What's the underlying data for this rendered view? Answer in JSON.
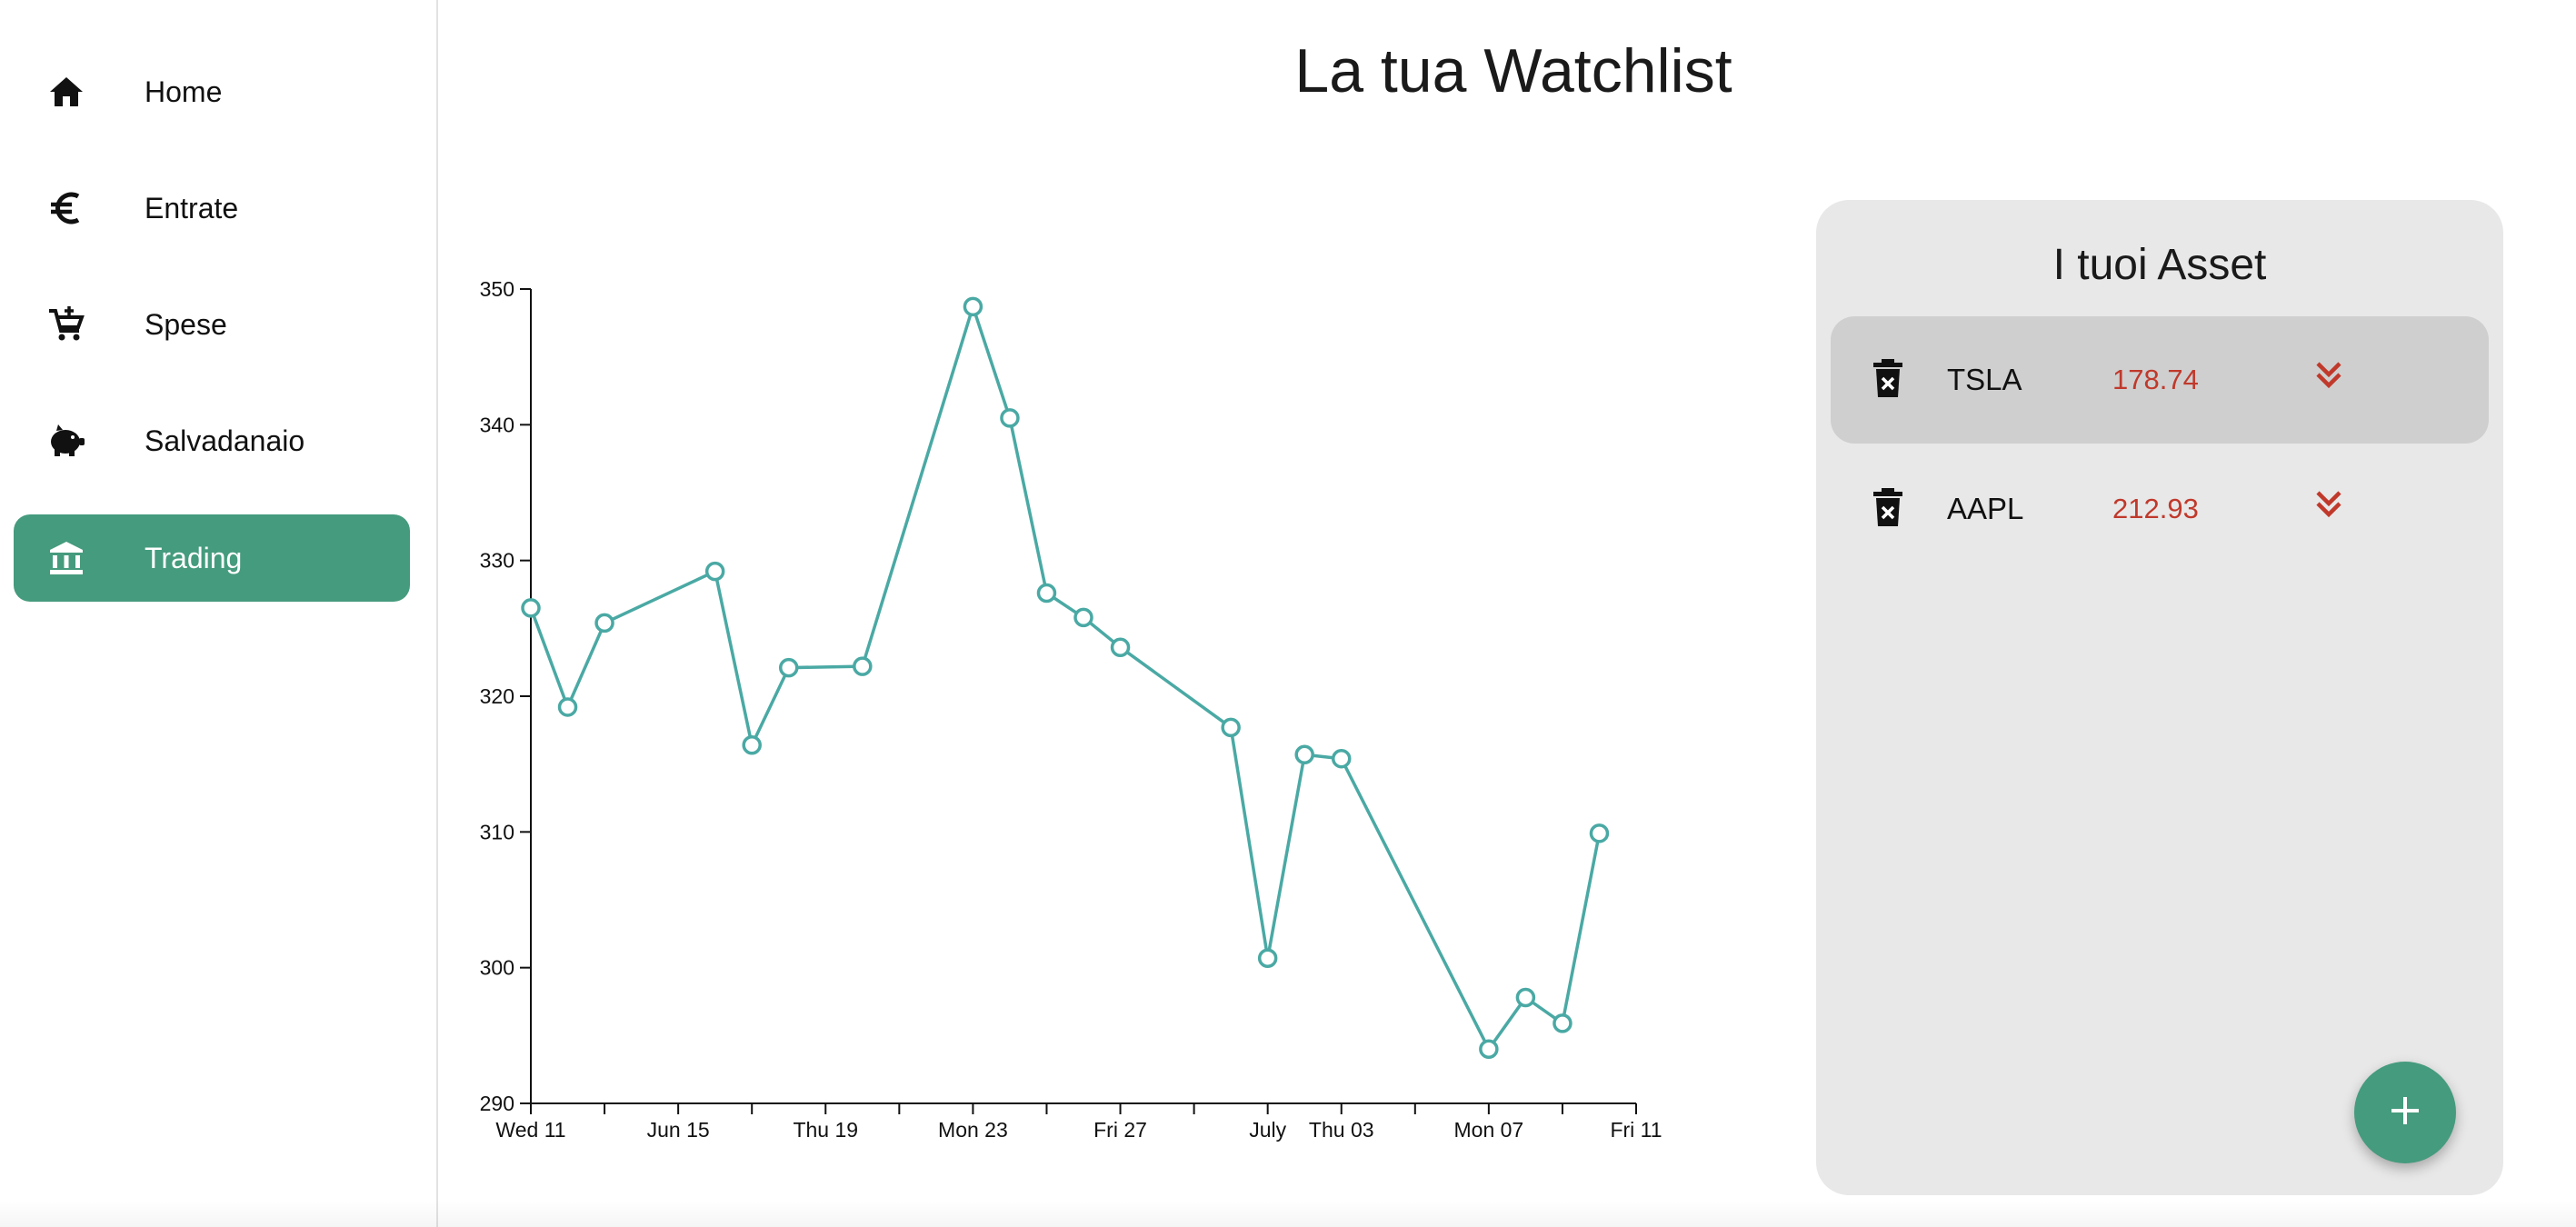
{
  "page": {
    "title": "La tua Watchlist"
  },
  "sidebar": {
    "items": [
      {
        "label": "Home",
        "icon": "home-icon",
        "active": false
      },
      {
        "label": "Entrate",
        "icon": "euro-icon",
        "active": false
      },
      {
        "label": "Spese",
        "icon": "add-cart-icon",
        "active": false
      },
      {
        "label": "Salvadanaio",
        "icon": "piggy-bank-icon",
        "active": false
      },
      {
        "label": "Trading",
        "icon": "bank-icon",
        "active": true
      }
    ]
  },
  "assets": {
    "title": "I tuoi Asset",
    "items": [
      {
        "symbol": "TSLA",
        "price": "178.74",
        "selected": true
      },
      {
        "symbol": "AAPL",
        "price": "212.93",
        "selected": false
      }
    ],
    "add_icon": "plus-icon"
  },
  "colors": {
    "accent": "#459b7d",
    "line": "#4aa9a4",
    "price": "#c0392b",
    "panel": "#e8e8e8"
  },
  "chart_data": {
    "type": "line",
    "xlabel": "",
    "ylabel": "",
    "ylim": [
      290,
      350
    ],
    "xlim": [
      "2025-06-11",
      "2025-07-11"
    ],
    "yticks": [
      290,
      300,
      310,
      320,
      330,
      340,
      350
    ],
    "xtick_labels": [
      {
        "date": "2025-06-11",
        "label": "Wed 11"
      },
      {
        "date": "2025-06-15",
        "label": "Jun 15"
      },
      {
        "date": "2025-06-19",
        "label": "Thu 19"
      },
      {
        "date": "2025-06-23",
        "label": "Mon 23"
      },
      {
        "date": "2025-06-27",
        "label": "Fri 27"
      },
      {
        "date": "2025-07-01",
        "label": "July"
      },
      {
        "date": "2025-07-03",
        "label": "Thu 03"
      },
      {
        "date": "2025-07-07",
        "label": "Mon 07"
      },
      {
        "date": "2025-07-11",
        "label": "Fri 11"
      }
    ],
    "minor_ticks": [
      "2025-06-13",
      "2025-06-17",
      "2025-06-21",
      "2025-06-25",
      "2025-06-29",
      "2025-07-05",
      "2025-07-09"
    ],
    "points": [
      {
        "x": "2025-06-11",
        "y": 326.5
      },
      {
        "x": "2025-06-12",
        "y": 319.2
      },
      {
        "x": "2025-06-13",
        "y": 325.4
      },
      {
        "x": "2025-06-16",
        "y": 329.2
      },
      {
        "x": "2025-06-17",
        "y": 316.4
      },
      {
        "x": "2025-06-18",
        "y": 322.1
      },
      {
        "x": "2025-06-20",
        "y": 322.2
      },
      {
        "x": "2025-06-23",
        "y": 348.7
      },
      {
        "x": "2025-06-24",
        "y": 340.5
      },
      {
        "x": "2025-06-25",
        "y": 327.6
      },
      {
        "x": "2025-06-26",
        "y": 325.8
      },
      {
        "x": "2025-06-27",
        "y": 323.6
      },
      {
        "x": "2025-06-30",
        "y": 317.7
      },
      {
        "x": "2025-07-01",
        "y": 300.7
      },
      {
        "x": "2025-07-02",
        "y": 315.7
      },
      {
        "x": "2025-07-03",
        "y": 315.4
      },
      {
        "x": "2025-07-07",
        "y": 294.0
      },
      {
        "x": "2025-07-08",
        "y": 297.8
      },
      {
        "x": "2025-07-09",
        "y": 295.9
      },
      {
        "x": "2025-07-10",
        "y": 309.9
      }
    ]
  }
}
